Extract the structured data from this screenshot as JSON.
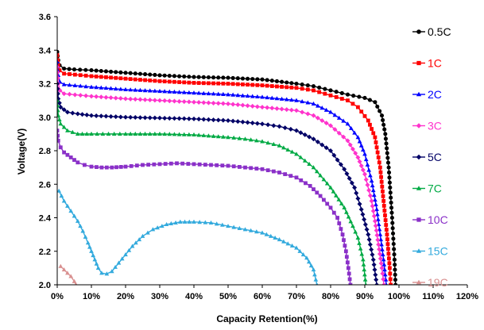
{
  "chart_data": {
    "type": "line",
    "title": "",
    "xlabel": "Capacity Retention(%)",
    "ylabel": "Voltage(V)",
    "xlim": [
      0,
      120
    ],
    "ylim": [
      2.0,
      3.6
    ],
    "x_ticks": [
      "0%",
      "10%",
      "20%",
      "30%",
      "40%",
      "50%",
      "60%",
      "70%",
      "80%",
      "90%",
      "100%",
      "110%",
      "120%"
    ],
    "y_ticks": [
      "2.0",
      "2.2",
      "2.4",
      "2.6",
      "2.8",
      "3.0",
      "3.2",
      "3.4",
      "3.6"
    ],
    "grid": false,
    "legend_position": "right",
    "series": [
      {
        "name": "0.5C",
        "color": "#000000",
        "marker": "circle",
        "points": [
          [
            0,
            3.39
          ],
          [
            0.3,
            3.34
          ],
          [
            0.7,
            3.31
          ],
          [
            2,
            3.29
          ],
          [
            5,
            3.285
          ],
          [
            10,
            3.28
          ],
          [
            20,
            3.265
          ],
          [
            30,
            3.25
          ],
          [
            40,
            3.24
          ],
          [
            50,
            3.235
          ],
          [
            60,
            3.225
          ],
          [
            70,
            3.2
          ],
          [
            75,
            3.185
          ],
          [
            80,
            3.16
          ],
          [
            85,
            3.135
          ],
          [
            90,
            3.115
          ],
          [
            93,
            3.09
          ],
          [
            95,
            3.01
          ],
          [
            96,
            2.9
          ],
          [
            97,
            2.7
          ],
          [
            98,
            2.4
          ],
          [
            98.7,
            2.15
          ],
          [
            99,
            2.0
          ]
        ]
      },
      {
        "name": "1C",
        "color": "#ff0000",
        "marker": "square",
        "points": [
          [
            0,
            3.37
          ],
          [
            0.3,
            3.31
          ],
          [
            0.7,
            3.28
          ],
          [
            2,
            3.26
          ],
          [
            10,
            3.245
          ],
          [
            20,
            3.23
          ],
          [
            30,
            3.215
          ],
          [
            40,
            3.205
          ],
          [
            50,
            3.2
          ],
          [
            60,
            3.19
          ],
          [
            70,
            3.175
          ],
          [
            75,
            3.16
          ],
          [
            80,
            3.13
          ],
          [
            85,
            3.1
          ],
          [
            88,
            3.06
          ],
          [
            91,
            2.98
          ],
          [
            93,
            2.88
          ],
          [
            94.5,
            2.7
          ],
          [
            95.5,
            2.5
          ],
          [
            96.5,
            2.3
          ],
          [
            97.3,
            2.1
          ],
          [
            97.6,
            2.0
          ]
        ]
      },
      {
        "name": "2C",
        "color": "#0000ff",
        "marker": "triangle",
        "points": [
          [
            0,
            3.33
          ],
          [
            0.3,
            3.25
          ],
          [
            0.8,
            3.21
          ],
          [
            2,
            3.195
          ],
          [
            10,
            3.18
          ],
          [
            20,
            3.165
          ],
          [
            30,
            3.155
          ],
          [
            40,
            3.145
          ],
          [
            50,
            3.135
          ],
          [
            60,
            3.12
          ],
          [
            70,
            3.1
          ],
          [
            75,
            3.08
          ],
          [
            80,
            3.03
          ],
          [
            85,
            2.96
          ],
          [
            88,
            2.88
          ],
          [
            90,
            2.78
          ],
          [
            92,
            2.62
          ],
          [
            93.5,
            2.45
          ],
          [
            94.5,
            2.3
          ],
          [
            95.5,
            2.15
          ],
          [
            96.3,
            2.0
          ]
        ]
      },
      {
        "name": "3C",
        "color": "#ff33cc",
        "marker": "diamond",
        "points": [
          [
            0,
            3.3
          ],
          [
            0.3,
            3.2
          ],
          [
            0.8,
            3.16
          ],
          [
            2,
            3.14
          ],
          [
            10,
            3.125
          ],
          [
            20,
            3.11
          ],
          [
            30,
            3.1
          ],
          [
            40,
            3.09
          ],
          [
            50,
            3.08
          ],
          [
            60,
            3.06
          ],
          [
            70,
            3.04
          ],
          [
            75,
            3.01
          ],
          [
            80,
            2.95
          ],
          [
            85,
            2.86
          ],
          [
            88,
            2.76
          ],
          [
            90,
            2.66
          ],
          [
            92,
            2.5
          ],
          [
            93,
            2.38
          ],
          [
            94,
            2.24
          ],
          [
            95,
            2.1
          ],
          [
            95.6,
            2.0
          ]
        ]
      },
      {
        "name": "5C",
        "color": "#000066",
        "marker": "diamond",
        "points": [
          [
            0,
            3.2
          ],
          [
            0.3,
            3.11
          ],
          [
            1,
            3.06
          ],
          [
            3,
            3.03
          ],
          [
            6,
            3.02
          ],
          [
            10,
            3.01
          ],
          [
            20,
            3.0
          ],
          [
            30,
            2.995
          ],
          [
            40,
            2.99
          ],
          [
            50,
            2.98
          ],
          [
            60,
            2.96
          ],
          [
            65,
            2.945
          ],
          [
            70,
            2.92
          ],
          [
            75,
            2.87
          ],
          [
            80,
            2.8
          ],
          [
            84,
            2.69
          ],
          [
            87,
            2.58
          ],
          [
            89,
            2.45
          ],
          [
            91,
            2.3
          ],
          [
            92.5,
            2.15
          ],
          [
            93.5,
            2.0
          ]
        ]
      },
      {
        "name": "7C",
        "color": "#00aa44",
        "marker": "triangle",
        "points": [
          [
            0,
            3.1
          ],
          [
            0.3,
            3.01
          ],
          [
            1,
            2.96
          ],
          [
            3,
            2.92
          ],
          [
            6,
            2.9
          ],
          [
            10,
            2.9
          ],
          [
            15,
            2.9
          ],
          [
            20,
            2.9
          ],
          [
            30,
            2.9
          ],
          [
            40,
            2.895
          ],
          [
            50,
            2.88
          ],
          [
            55,
            2.87
          ],
          [
            60,
            2.855
          ],
          [
            65,
            2.83
          ],
          [
            70,
            2.78
          ],
          [
            75,
            2.7
          ],
          [
            80,
            2.58
          ],
          [
            84,
            2.46
          ],
          [
            86.5,
            2.35
          ],
          [
            88,
            2.28
          ],
          [
            89.5,
            2.15
          ],
          [
            90.3,
            2.0
          ]
        ]
      },
      {
        "name": "10C",
        "color": "#8a30c8",
        "marker": "square",
        "points": [
          [
            0,
            2.92
          ],
          [
            0.3,
            2.86
          ],
          [
            1,
            2.82
          ],
          [
            2,
            2.79
          ],
          [
            4,
            2.76
          ],
          [
            6,
            2.73
          ],
          [
            8,
            2.715
          ],
          [
            10,
            2.705
          ],
          [
            13,
            2.7
          ],
          [
            16,
            2.7
          ],
          [
            20,
            2.705
          ],
          [
            25,
            2.715
          ],
          [
            30,
            2.72
          ],
          [
            35,
            2.725
          ],
          [
            40,
            2.72
          ],
          [
            45,
            2.715
          ],
          [
            50,
            2.71
          ],
          [
            55,
            2.7
          ],
          [
            60,
            2.69
          ],
          [
            65,
            2.67
          ],
          [
            70,
            2.64
          ],
          [
            74,
            2.59
          ],
          [
            77,
            2.53
          ],
          [
            80,
            2.46
          ],
          [
            82,
            2.4
          ],
          [
            83.5,
            2.3
          ],
          [
            84.5,
            2.2
          ],
          [
            85.2,
            2.1
          ],
          [
            85.8,
            2.0
          ]
        ]
      },
      {
        "name": "15C",
        "color": "#33aadd",
        "marker": "triangle",
        "points": [
          [
            0.5,
            2.56
          ],
          [
            2,
            2.5
          ],
          [
            4,
            2.44
          ],
          [
            6,
            2.38
          ],
          [
            7.5,
            2.32
          ],
          [
            9,
            2.25
          ],
          [
            10,
            2.2
          ],
          [
            11,
            2.15
          ],
          [
            12,
            2.1
          ],
          [
            13,
            2.07
          ],
          [
            14.5,
            2.065
          ],
          [
            16,
            2.08
          ],
          [
            18,
            2.13
          ],
          [
            20,
            2.18
          ],
          [
            22,
            2.23
          ],
          [
            25,
            2.29
          ],
          [
            28,
            2.33
          ],
          [
            32,
            2.36
          ],
          [
            36,
            2.375
          ],
          [
            40,
            2.375
          ],
          [
            45,
            2.37
          ],
          [
            50,
            2.35
          ],
          [
            55,
            2.33
          ],
          [
            60,
            2.31
          ],
          [
            65,
            2.27
          ],
          [
            70,
            2.22
          ],
          [
            73,
            2.16
          ],
          [
            75,
            2.09
          ],
          [
            76,
            2.0
          ]
        ]
      },
      {
        "name": "19C",
        "color": "#d99090",
        "marker": "triangle",
        "points": [
          [
            1,
            2.11
          ],
          [
            2,
            2.09
          ],
          [
            3,
            2.07
          ],
          [
            4,
            2.05
          ],
          [
            5,
            2.02
          ],
          [
            5.5,
            2.0
          ]
        ]
      }
    ]
  }
}
